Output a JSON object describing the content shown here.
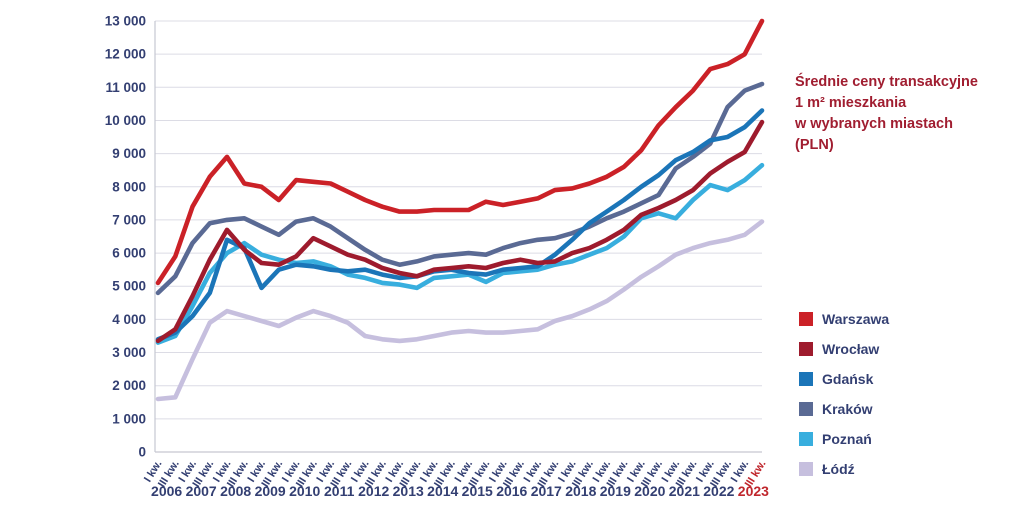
{
  "title": {
    "lines": [
      "Średnie ceny transakcyjne",
      "1 m² mieszkania",
      "w wybranych miastach",
      "(PLN)"
    ],
    "color": "#a01d30"
  },
  "axis": {
    "label_color": "#333f72",
    "grid_color": "#dcdce5",
    "axis_line_color": "#c6c7d1",
    "highlight_color": "#c0272d"
  },
  "chart_data": {
    "type": "line",
    "title": "Średnie ceny transakcyjne 1 m² mieszkania w wybranych miastach (PLN)",
    "ylim": [
      0,
      13000
    ],
    "ytick_step": 1000,
    "grid": true,
    "legend_position": "right",
    "years": [
      2006,
      2007,
      2008,
      2009,
      2010,
      2011,
      2012,
      2013,
      2014,
      2015,
      2016,
      2017,
      2018,
      2019,
      2020,
      2021,
      2022,
      2023
    ],
    "quarter_labels": [
      "I kw.",
      "III kw."
    ],
    "categories": [
      "I kw. 2006",
      "III kw. 2006",
      "I kw. 2007",
      "III kw. 2007",
      "I kw. 2008",
      "III kw. 2008",
      "I kw. 2009",
      "III kw. 2009",
      "I kw. 2010",
      "III kw. 2010",
      "I kw. 2011",
      "III kw. 2011",
      "I kw. 2012",
      "III kw. 2012",
      "I kw. 2013",
      "III kw. 2013",
      "I kw. 2014",
      "III kw. 2014",
      "I kw. 2015",
      "III kw. 2015",
      "I kw. 2016",
      "III kw. 2016",
      "I kw. 2017",
      "III kw. 2017",
      "I kw. 2018",
      "III kw. 2018",
      "I kw. 2019",
      "III kw. 2019",
      "I kw. 2020",
      "III kw. 2020",
      "I kw. 2021",
      "III kw. 2021",
      "I kw. 2022",
      "III kw. 2022",
      "I kw. 2023",
      "III kw. 2023"
    ],
    "highlighted_last_tick": {
      "quarter": "III kw.",
      "year": 2023,
      "color": "#c0272d"
    },
    "series": [
      {
        "name": "Warszawa",
        "color": "#cb2127",
        "values": [
          5100,
          5900,
          7400,
          8300,
          8900,
          8100,
          8000,
          7600,
          8200,
          8150,
          8100,
          7850,
          7600,
          7400,
          7250,
          7250,
          7300,
          7300,
          7300,
          7550,
          7450,
          7550,
          7650,
          7900,
          7950,
          8100,
          8300,
          8600,
          9100,
          9850,
          10400,
          10900,
          11550,
          11700,
          12000,
          13000
        ]
      },
      {
        "name": "Wrocław",
        "color": "#9e1b2d",
        "values": [
          3350,
          3700,
          4700,
          5800,
          6700,
          6100,
          5700,
          5650,
          5900,
          6450,
          6200,
          5950,
          5800,
          5550,
          5400,
          5300,
          5500,
          5550,
          5600,
          5550,
          5700,
          5800,
          5700,
          5750,
          6000,
          6150,
          6400,
          6700,
          7150,
          7360,
          7600,
          7900,
          8400,
          8750,
          9050,
          9950
        ]
      },
      {
        "name": "Gdańsk",
        "color": "#1b75b8",
        "values": [
          3400,
          3600,
          4100,
          4800,
          6400,
          6150,
          4950,
          5500,
          5650,
          5600,
          5500,
          5450,
          5500,
          5350,
          5250,
          5300,
          5450,
          5500,
          5400,
          5350,
          5500,
          5550,
          5600,
          5950,
          6400,
          6900,
          7250,
          7600,
          8000,
          8350,
          8800,
          9050,
          9400,
          9500,
          9800,
          10300
        ]
      },
      {
        "name": "Kraków",
        "color": "#5a6a94",
        "values": [
          4800,
          5300,
          6300,
          6900,
          7000,
          7050,
          6800,
          6550,
          6950,
          7050,
          6800,
          6450,
          6100,
          5800,
          5650,
          5750,
          5900,
          5950,
          6000,
          5950,
          6150,
          6300,
          6400,
          6450,
          6600,
          6800,
          7050,
          7250,
          7500,
          7750,
          8550,
          8900,
          9300,
          10400,
          10900,
          11100
        ]
      },
      {
        "name": "Poznań",
        "color": "#38aede",
        "values": [
          3300,
          3500,
          4400,
          5400,
          6000,
          6300,
          5950,
          5800,
          5700,
          5750,
          5600,
          5350,
          5250,
          5100,
          5050,
          4950,
          5250,
          5300,
          5350,
          5130,
          5400,
          5450,
          5500,
          5650,
          5750,
          5950,
          6150,
          6500,
          7050,
          7200,
          7050,
          7600,
          8050,
          7900,
          8200,
          8650
        ]
      },
      {
        "name": "Łódź",
        "color": "#c6bfde",
        "values": [
          1600,
          1650,
          2800,
          3900,
          4250,
          4100,
          3950,
          3800,
          4050,
          4250,
          4100,
          3900,
          3500,
          3400,
          3350,
          3400,
          3500,
          3600,
          3650,
          3600,
          3600,
          3650,
          3700,
          3950,
          4100,
          4300,
          4550,
          4900,
          5280,
          5600,
          5950,
          6150,
          6300,
          6400,
          6550,
          6950
        ]
      }
    ]
  }
}
